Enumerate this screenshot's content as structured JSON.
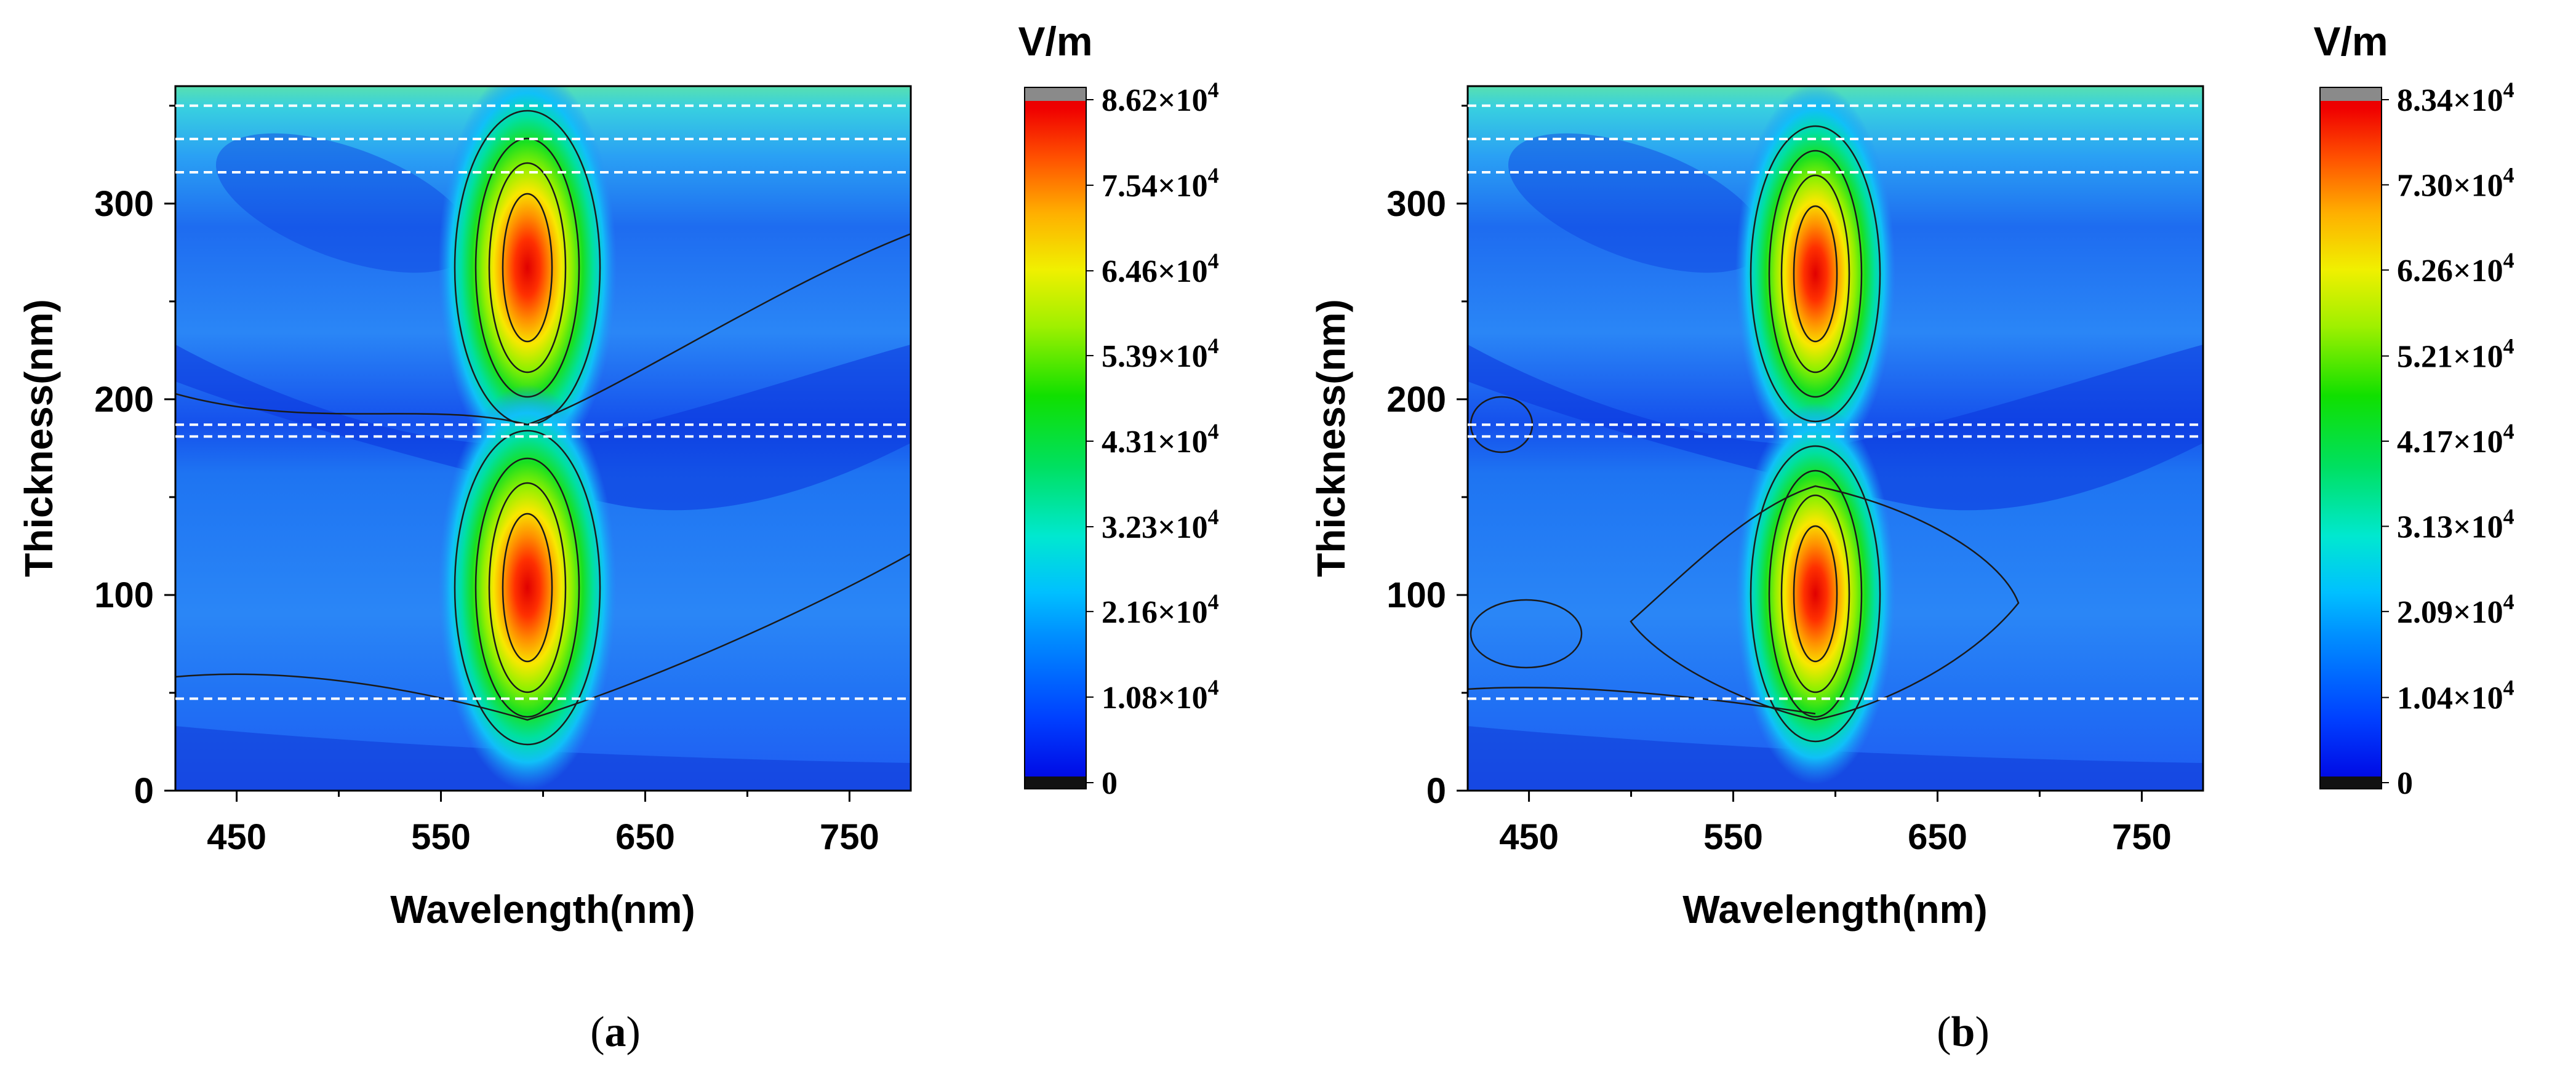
{
  "chart_data": [
    {
      "type": "heatmap",
      "panel_label": "(a)",
      "panel_label_open": "(",
      "panel_label_letter": "a",
      "panel_label_close": ")",
      "xlabel": "Wavelength(nm)",
      "ylabel": "Thickness(nm)",
      "xlim": [
        420,
        780
      ],
      "ylim": [
        0,
        360
      ],
      "x_ticks": [
        450,
        550,
        650,
        750
      ],
      "y_ticks": [
        0,
        100,
        200,
        300
      ],
      "colorbar": {
        "unit": "V/m",
        "min": 0,
        "max": 86200,
        "ticks": [
          {
            "value": 0,
            "mantissa": "0",
            "exponent": ""
          },
          {
            "value": 10800,
            "mantissa": "1.08×10",
            "exponent": "4"
          },
          {
            "value": 21600,
            "mantissa": "2.16×10",
            "exponent": "4"
          },
          {
            "value": 32300,
            "mantissa": "3.23×10",
            "exponent": "4"
          },
          {
            "value": 43100,
            "mantissa": "4.31×10",
            "exponent": "4"
          },
          {
            "value": 53900,
            "mantissa": "5.39×10",
            "exponent": "4"
          },
          {
            "value": 64600,
            "mantissa": "6.46×10",
            "exponent": "4"
          },
          {
            "value": 75400,
            "mantissa": "7.54×10",
            "exponent": "4"
          },
          {
            "value": 86200,
            "mantissa": "8.62×10",
            "exponent": "4"
          }
        ]
      },
      "hotspots": [
        {
          "wavelength": 593,
          "thickness": 265,
          "peak_fraction": 1.0
        },
        {
          "wavelength": 593,
          "thickness": 108,
          "peak_fraction": 1.0
        }
      ],
      "layer_boundaries_nm": [
        47,
        181,
        187,
        316,
        333,
        350
      ]
    },
    {
      "type": "heatmap",
      "panel_label": "(b)",
      "panel_label_open": "(",
      "panel_label_letter": "b",
      "panel_label_close": ")",
      "xlabel": "Wavelength(nm)",
      "ylabel": "Thickness(nm)",
      "xlim": [
        420,
        780
      ],
      "ylim": [
        0,
        360
      ],
      "x_ticks": [
        450,
        550,
        650,
        750
      ],
      "y_ticks": [
        0,
        100,
        200,
        300
      ],
      "colorbar": {
        "unit": "V/m",
        "min": 0,
        "max": 83400,
        "ticks": [
          {
            "value": 0,
            "mantissa": "0",
            "exponent": ""
          },
          {
            "value": 10400,
            "mantissa": "1.04×10",
            "exponent": "4"
          },
          {
            "value": 20900,
            "mantissa": "2.09×10",
            "exponent": "4"
          },
          {
            "value": 31300,
            "mantissa": "3.13×10",
            "exponent": "4"
          },
          {
            "value": 41700,
            "mantissa": "4.17×10",
            "exponent": "4"
          },
          {
            "value": 52100,
            "mantissa": "5.21×10",
            "exponent": "4"
          },
          {
            "value": 62600,
            "mantissa": "6.26×10",
            "exponent": "4"
          },
          {
            "value": 73000,
            "mantissa": "7.30×10",
            "exponent": "4"
          },
          {
            "value": 83400,
            "mantissa": "8.34×10",
            "exponent": "4"
          }
        ]
      },
      "hotspots": [
        {
          "wavelength": 590,
          "thickness": 262,
          "peak_fraction": 1.0
        },
        {
          "wavelength": 590,
          "thickness": 106,
          "peak_fraction": 1.0
        }
      ],
      "layer_boundaries_nm": [
        47,
        181,
        187,
        316,
        333,
        350
      ]
    }
  ],
  "colors": {
    "background_field": "#1e6cf0",
    "dark_band": "#0b2fd8",
    "boundary_line": "#ffffff",
    "contour_line": "#1a1a1a"
  }
}
